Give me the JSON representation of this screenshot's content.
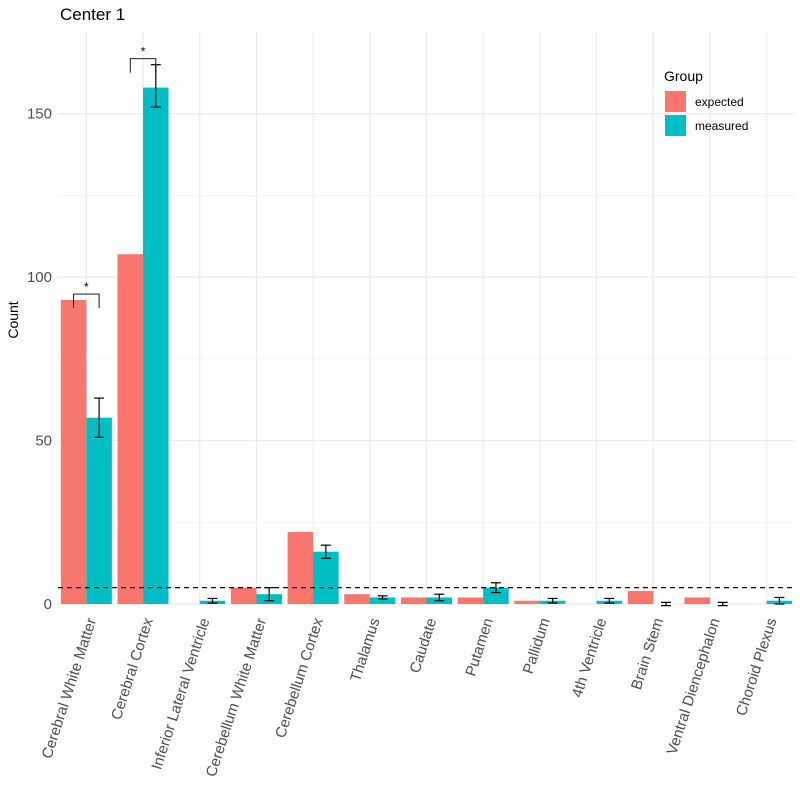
{
  "chart_data": {
    "type": "bar",
    "title": "Center 1",
    "xlabel": "",
    "ylabel": "Count",
    "ylim": [
      0,
      175
    ],
    "yticks": [
      0,
      50,
      100,
      150
    ],
    "threshold": 5,
    "categories": [
      "Cerebral White Matter",
      "Cerebral Cortex",
      "Inferior Lateral Ventricle",
      "Cerebellum White Matter",
      "Cerebellum Cortex",
      "Thalamus",
      "Caudate",
      "Putamen",
      "Pallidum",
      "4th Ventricle",
      "Brain Stem",
      "Ventral Diencephalon",
      "Choroid Plexus"
    ],
    "series": [
      {
        "name": "expected",
        "color": "#F8766D",
        "values": [
          93,
          107,
          0,
          5,
          22,
          3,
          2,
          2,
          1,
          0,
          4,
          2,
          0
        ]
      },
      {
        "name": "measured",
        "color": "#00BFC4",
        "values": [
          57,
          158,
          1,
          3,
          16,
          2,
          2,
          5,
          1,
          1,
          0,
          0,
          1
        ],
        "err_low": [
          51,
          152,
          0.3,
          1,
          14,
          1.5,
          1,
          3.5,
          0.3,
          0.3,
          -0.5,
          -0.5,
          0
        ],
        "err_high": [
          63,
          165,
          1.7,
          5,
          18,
          2.5,
          3,
          6.5,
          1.7,
          1.7,
          0.5,
          0.5,
          2
        ]
      }
    ],
    "legend": {
      "title": "Group",
      "position": "top-right"
    },
    "significance": [
      {
        "category_index": 0,
        "label": "*"
      },
      {
        "category_index": 1,
        "label": "*"
      }
    ]
  }
}
